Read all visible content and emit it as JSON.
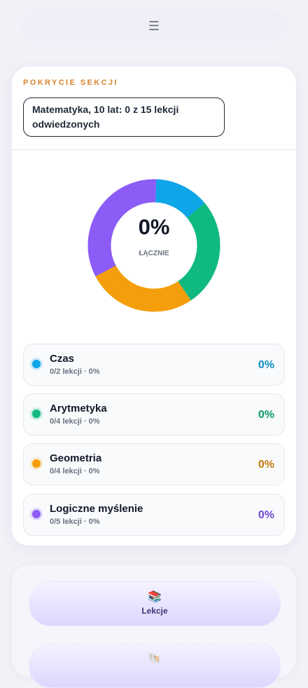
{
  "header": {
    "menu_icon": "☰"
  },
  "coverage": {
    "title": "POKRYCIE SEKCJI",
    "summary": "Matematyka, 10 lat: 0 z 15 lekcji odwiedzonych",
    "donut": {
      "center_value": "0%",
      "center_label": "ŁĄCZNIE"
    },
    "sections": [
      {
        "name": "Czas",
        "lessons": 2,
        "detail": "0/2 lekcji · 0%",
        "percent": "0%",
        "color": "#0ea5e9",
        "text_color": "#0e8fc2"
      },
      {
        "name": "Arytmetyka",
        "lessons": 4,
        "detail": "0/4 lekcji · 0%",
        "percent": "0%",
        "color": "#10b981",
        "text_color": "#0f9a6a"
      },
      {
        "name": "Geometria",
        "lessons": 4,
        "detail": "0/4 lekcji · 0%",
        "percent": "0%",
        "color": "#f59e0b",
        "text_color": "#c27c0a"
      },
      {
        "name": "Logiczne myślenie",
        "lessons": 5,
        "detail": "0/5 lekcji · 0%",
        "percent": "0%",
        "color": "#8b5cf6",
        "text_color": "#6d4bd0"
      }
    ]
  },
  "nav": {
    "buttons": [
      {
        "icon": "📚",
        "label": "Lekcje"
      },
      {
        "icon": "🐚",
        "label": ""
      }
    ]
  }
}
